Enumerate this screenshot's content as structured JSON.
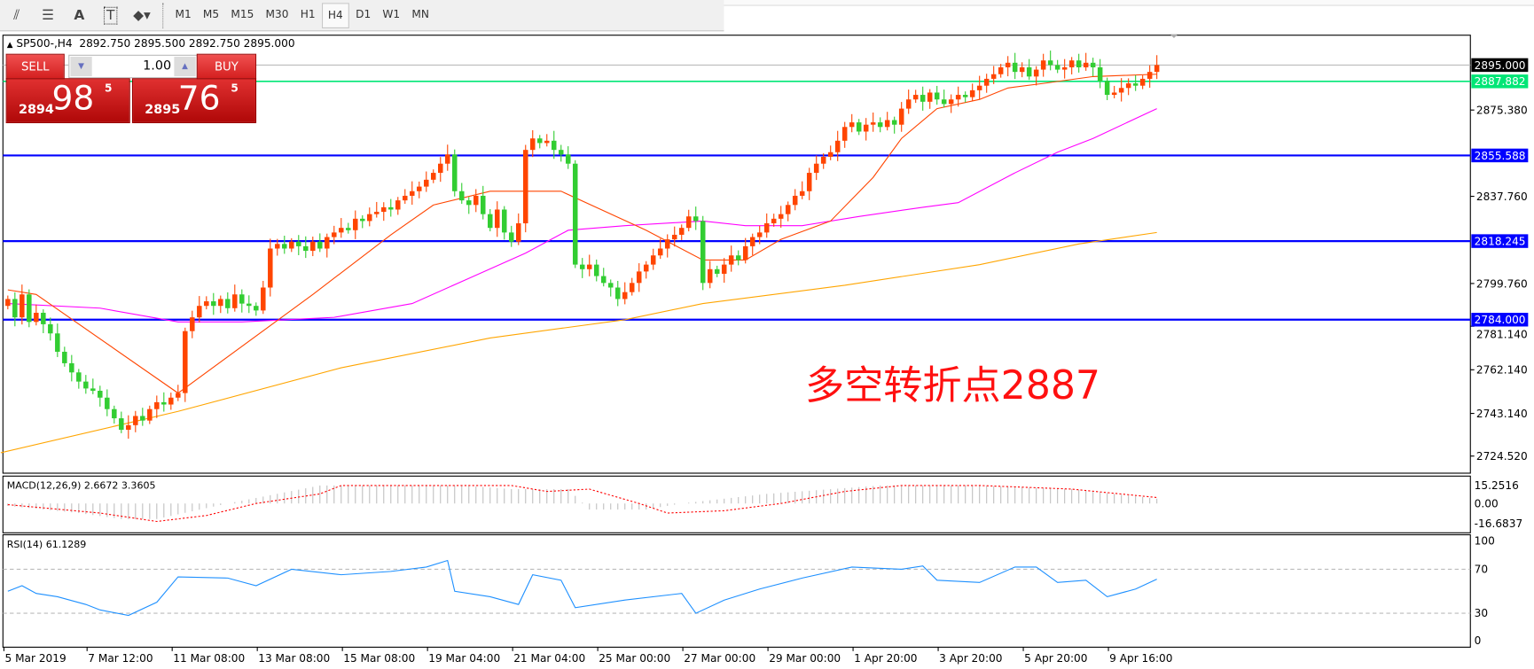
{
  "toolbar": {
    "icons": [
      "equidistant-channel-icon",
      "fibonacci-icon",
      "text-icon",
      "text-label-icon",
      "arrows-icon"
    ],
    "text_icon_label": "A",
    "label_icon_label": "T",
    "timeframes": [
      "M1",
      "M5",
      "M15",
      "M30",
      "H1",
      "H4",
      "D1",
      "W1",
      "MN"
    ],
    "selected": "H4"
  },
  "chart": {
    "title": "SP500-,H4  2892.750 2895.500 2892.750 2895.000"
  },
  "trade": {
    "sell_label": "SELL",
    "buy_label": "BUY",
    "lot": "1.00",
    "sell": {
      "small": "2894",
      "main": "98",
      "sup": "5"
    },
    "buy": {
      "small": "2895",
      "main": "76",
      "sup": "5"
    }
  },
  "annotation": "多空转折点2887",
  "colors": {
    "bull": "#ff4500",
    "bear": "#32cd32",
    "ma_fast": "#ff4500",
    "ma_mid": "#ff00ff",
    "ma_slow": "#ffa500",
    "level": "#0000ff",
    "pivot": "#00e676",
    "rsi": "#1e90ff",
    "macd_signal": "#ff0000",
    "macd_hist": "#c0c0c0"
  },
  "chart_data": {
    "type": "candlestick",
    "symbol": "SP500-",
    "timeframe": "H4",
    "ylim": [
      2718,
      2905
    ],
    "y_ticks": [
      "2875.380",
      "2837.760",
      "2799.760",
      "2781.140",
      "2762.140",
      "2743.140",
      "2724.520"
    ],
    "price_labels": [
      {
        "value": 2895.0,
        "text": "2895.000",
        "color": "#000000",
        "kind": "current"
      },
      {
        "value": 2887.882,
        "text": "2887.882",
        "color": "#00e676",
        "kind": "pivot"
      },
      {
        "value": 2855.588,
        "text": "2855.588",
        "color": "#0000ff",
        "kind": "level"
      },
      {
        "value": 2818.245,
        "text": "2818.245",
        "color": "#0000ff",
        "kind": "level"
      },
      {
        "value": 2784.0,
        "text": "2784.000",
        "color": "#0000ff",
        "kind": "level"
      }
    ],
    "x_labels": [
      "5 Mar 2019",
      "7 Mar 12:00",
      "11 Mar 08:00",
      "13 Mar 08:00",
      "15 Mar 08:00",
      "19 Mar 04:00",
      "21 Mar 04:00",
      "25 Mar 00:00",
      "27 Mar 00:00",
      "29 Mar 00:00",
      "1 Apr 20:00",
      "3 Apr 20:00",
      "5 Apr 20:00",
      "9 Apr 16:00"
    ],
    "closes": [
      2793,
      2785,
      2795,
      2783,
      2787,
      2782,
      2778,
      2770,
      2765,
      2761,
      2757,
      2754,
      2753,
      2750,
      2745,
      2741,
      2736,
      2738,
      2742,
      2740,
      2745,
      2748,
      2747,
      2750,
      2752,
      2779,
      2785,
      2790,
      2792,
      2790,
      2793,
      2789,
      2795,
      2791,
      2790,
      2788,
      2798,
      2815,
      2817,
      2815,
      2818,
      2816,
      2814,
      2818,
      2815,
      2820,
      2822,
      2824,
      2823,
      2828,
      2827,
      2830,
      2831,
      2833,
      2832,
      2836,
      2838,
      2840,
      2842,
      2845,
      2848,
      2852,
      2856,
      2840,
      2836,
      2834,
      2838,
      2830,
      2824,
      2832,
      2822,
      2818,
      2826,
      2858,
      2863,
      2861,
      2862,
      2858,
      2856,
      2852,
      2808,
      2806,
      2808,
      2803,
      2800,
      2798,
      2793,
      2796,
      2800,
      2805,
      2808,
      2812,
      2815,
      2819,
      2821,
      2824,
      2829,
      2827,
      2800,
      2806,
      2804,
      2808,
      2812,
      2810,
      2816,
      2820,
      2822,
      2826,
      2828,
      2830,
      2834,
      2838,
      2840,
      2848,
      2852,
      2855,
      2857,
      2862,
      2868,
      2870,
      2866,
      2869,
      2870,
      2868,
      2871,
      2869,
      2876,
      2880,
      2882,
      2879,
      2883,
      2880,
      2878,
      2880,
      2882,
      2881,
      2884,
      2886,
      2889,
      2891,
      2894,
      2896,
      2892,
      2894,
      2890,
      2893,
      2897,
      2895,
      2893,
      2894,
      2897,
      2894,
      2896,
      2894,
      2888,
      2882,
      2883,
      2885,
      2887,
      2886,
      2889,
      2892,
      2895
    ],
    "ma_fast": [
      [
        0,
        2797
      ],
      [
        4,
        2795
      ],
      [
        24,
        2752
      ],
      [
        43,
        2795
      ],
      [
        54,
        2821
      ],
      [
        60,
        2834
      ],
      [
        68,
        2840
      ],
      [
        78,
        2840
      ],
      [
        90,
        2823
      ],
      [
        98,
        2810
      ],
      [
        104,
        2810
      ],
      [
        109,
        2819
      ],
      [
        116,
        2827
      ],
      [
        122,
        2846
      ],
      [
        126,
        2863
      ],
      [
        131,
        2876
      ],
      [
        137,
        2880
      ],
      [
        141,
        2885
      ],
      [
        146,
        2887
      ],
      [
        153,
        2890
      ],
      [
        162,
        2891
      ]
    ],
    "ma_mid": [
      [
        0,
        2791
      ],
      [
        13,
        2789
      ],
      [
        24,
        2783
      ],
      [
        33,
        2783
      ],
      [
        46,
        2785
      ],
      [
        57,
        2791
      ],
      [
        65,
        2802
      ],
      [
        73,
        2813
      ],
      [
        79,
        2823
      ],
      [
        87,
        2825
      ],
      [
        98,
        2827
      ],
      [
        104,
        2825
      ],
      [
        112,
        2825
      ],
      [
        120,
        2829
      ],
      [
        129,
        2833
      ],
      [
        134,
        2835
      ],
      [
        142,
        2848
      ],
      [
        148,
        2857
      ],
      [
        153,
        2863
      ],
      [
        162,
        2876
      ]
    ],
    "ma_slow": [
      [
        -1,
        2726
      ],
      [
        24,
        2744
      ],
      [
        47,
        2763
      ],
      [
        68,
        2776
      ],
      [
        87,
        2784
      ],
      [
        98,
        2791
      ],
      [
        118,
        2799
      ],
      [
        137,
        2808
      ],
      [
        151,
        2817
      ],
      [
        162,
        2822
      ]
    ],
    "macd": {
      "label": "MACD(12,26,9) 2.6672 3.3605",
      "ylim": [
        -16.6837,
        15.2516
      ],
      "ticks": [
        "15.2516",
        "0.00",
        "-16.6837"
      ],
      "main": [
        [
          0,
          -2
        ],
        [
          10,
          -8
        ],
        [
          16,
          -13
        ],
        [
          21,
          -13
        ],
        [
          31,
          0
        ],
        [
          44,
          15
        ],
        [
          64,
          15
        ],
        [
          71,
          12
        ],
        [
          79,
          12
        ],
        [
          82,
          -5
        ],
        [
          90,
          -5
        ],
        [
          95,
          0
        ],
        [
          107,
          8
        ],
        [
          123,
          15
        ],
        [
          136,
          15
        ],
        [
          150,
          12
        ],
        [
          162,
          4
        ]
      ],
      "signal": [
        [
          0,
          -1
        ],
        [
          13,
          -8
        ],
        [
          21,
          -15
        ],
        [
          28,
          -10
        ],
        [
          35,
          0
        ],
        [
          44,
          8
        ],
        [
          47,
          15
        ],
        [
          71,
          15
        ],
        [
          76,
          10
        ],
        [
          82,
          12
        ],
        [
          89,
          0
        ],
        [
          93,
          -8
        ],
        [
          101,
          -6
        ],
        [
          109,
          0
        ],
        [
          118,
          10
        ],
        [
          126,
          15
        ],
        [
          137,
          15
        ],
        [
          150,
          12
        ],
        [
          162,
          5
        ]
      ]
    },
    "rsi": {
      "label": "RSI(14) 61.1289",
      "ylim": [
        0,
        100
      ],
      "ticks": [
        "100",
        "70",
        "30",
        "0"
      ],
      "levels": [
        70,
        30
      ],
      "values": [
        [
          0,
          50
        ],
        [
          2,
          55
        ],
        [
          4,
          48
        ],
        [
          7,
          45
        ],
        [
          11,
          38
        ],
        [
          13,
          33
        ],
        [
          17,
          28
        ],
        [
          21,
          40
        ],
        [
          24,
          63
        ],
        [
          31,
          62
        ],
        [
          35,
          55
        ],
        [
          40,
          70
        ],
        [
          47,
          65
        ],
        [
          54,
          68
        ],
        [
          59,
          72
        ],
        [
          62,
          78
        ],
        [
          63,
          50
        ],
        [
          68,
          45
        ],
        [
          72,
          38
        ],
        [
          74,
          65
        ],
        [
          78,
          60
        ],
        [
          80,
          35
        ],
        [
          87,
          42
        ],
        [
          95,
          48
        ],
        [
          97,
          30
        ],
        [
          101,
          42
        ],
        [
          106,
          52
        ],
        [
          112,
          62
        ],
        [
          119,
          72
        ],
        [
          126,
          70
        ],
        [
          129,
          73
        ],
        [
          131,
          60
        ],
        [
          137,
          58
        ],
        [
          142,
          72
        ],
        [
          145,
          72
        ],
        [
          148,
          58
        ],
        [
          152,
          60
        ],
        [
          155,
          45
        ],
        [
          159,
          52
        ],
        [
          162,
          61
        ]
      ]
    }
  }
}
